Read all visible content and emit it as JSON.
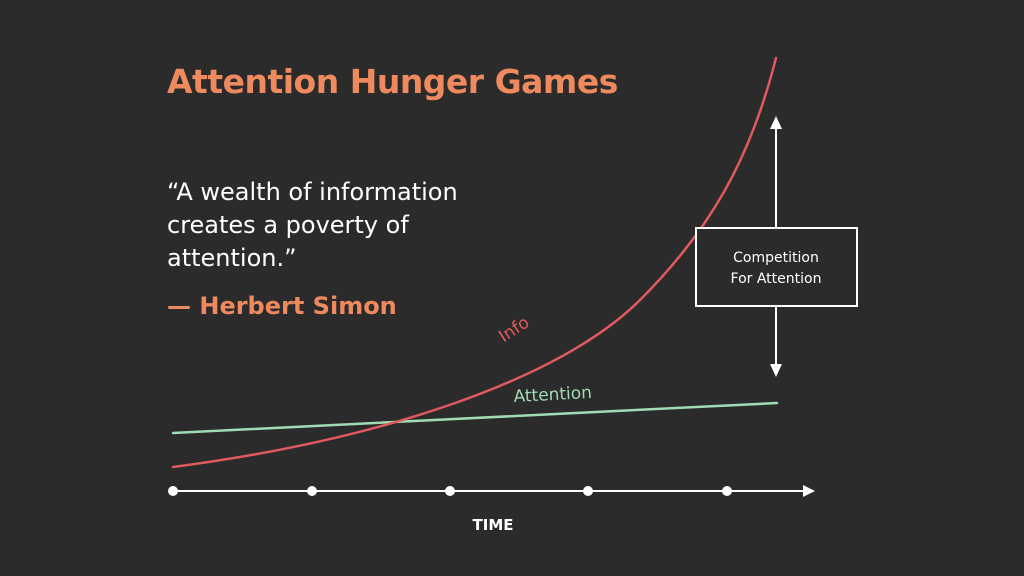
{
  "slide": {
    "title": "Attention Hunger Games",
    "quote": "“A wealth of information creates a poverty of attention.”",
    "attribution": "— Herbert Simon"
  },
  "diagram": {
    "info_label": "Info",
    "attention_label": "Attention",
    "competition_box_line1": "Competition",
    "competition_box_line2": "For Attention",
    "axis_label": "TIME"
  },
  "colors": {
    "background": "#2b2b2b",
    "accent_orange": "#ee8a5d",
    "info_curve": "#e05a5f",
    "attention_line": "#9fdcb3",
    "foreground": "#ffffff"
  }
}
